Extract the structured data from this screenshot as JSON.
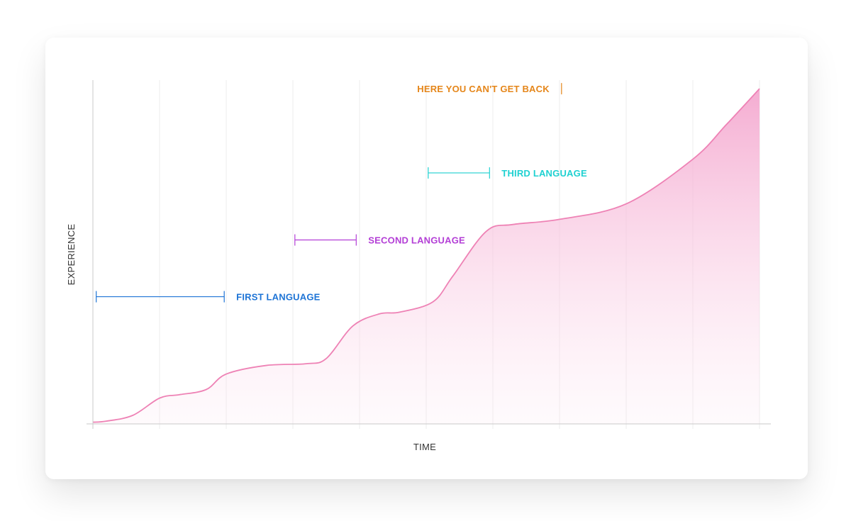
{
  "chart_data": {
    "type": "area",
    "xlabel": "TIME",
    "ylabel": "EXPERIENCE",
    "xlim": [
      0,
      10
    ],
    "ylim": [
      0,
      10
    ],
    "grid": true,
    "series": [
      {
        "color": "#ee82b5",
        "x": [
          0,
          0.2,
          0.6,
          1.0,
          1.3,
          1.7,
          2.0,
          2.6,
          3.2,
          3.5,
          3.9,
          4.3,
          4.6,
          5.1,
          5.4,
          5.9,
          6.3,
          7.0,
          8.0,
          9.0,
          9.5,
          10.0
        ],
        "y": [
          0.05,
          0.08,
          0.25,
          0.75,
          0.85,
          1.0,
          1.45,
          1.7,
          1.75,
          1.9,
          2.85,
          3.2,
          3.25,
          3.55,
          4.3,
          5.6,
          5.8,
          5.95,
          6.4,
          7.7,
          8.7,
          9.75
        ]
      }
    ],
    "annotations": [
      {
        "label": "FIRST LANGUAGE",
        "x_start": 0.05,
        "x_end": 1.97,
        "y": 3.7,
        "color": "#1e74d6",
        "text_side": "right"
      },
      {
        "label": "SECOND LANGUAGE",
        "x_start": 3.03,
        "x_end": 3.95,
        "y": 5.35,
        "color": "#b33ed6",
        "text_side": "right"
      },
      {
        "label": "THIRD LANGUAGE",
        "x_start": 5.03,
        "x_end": 5.95,
        "y": 7.3,
        "color": "#1fd1d1",
        "text_side": "right"
      },
      {
        "label": "HERE YOU CAN'T GET BACK",
        "x_start": 7.03,
        "x_end": 10.0,
        "y": 9.75,
        "color": "#e5861a",
        "text_side": "left"
      }
    ]
  }
}
